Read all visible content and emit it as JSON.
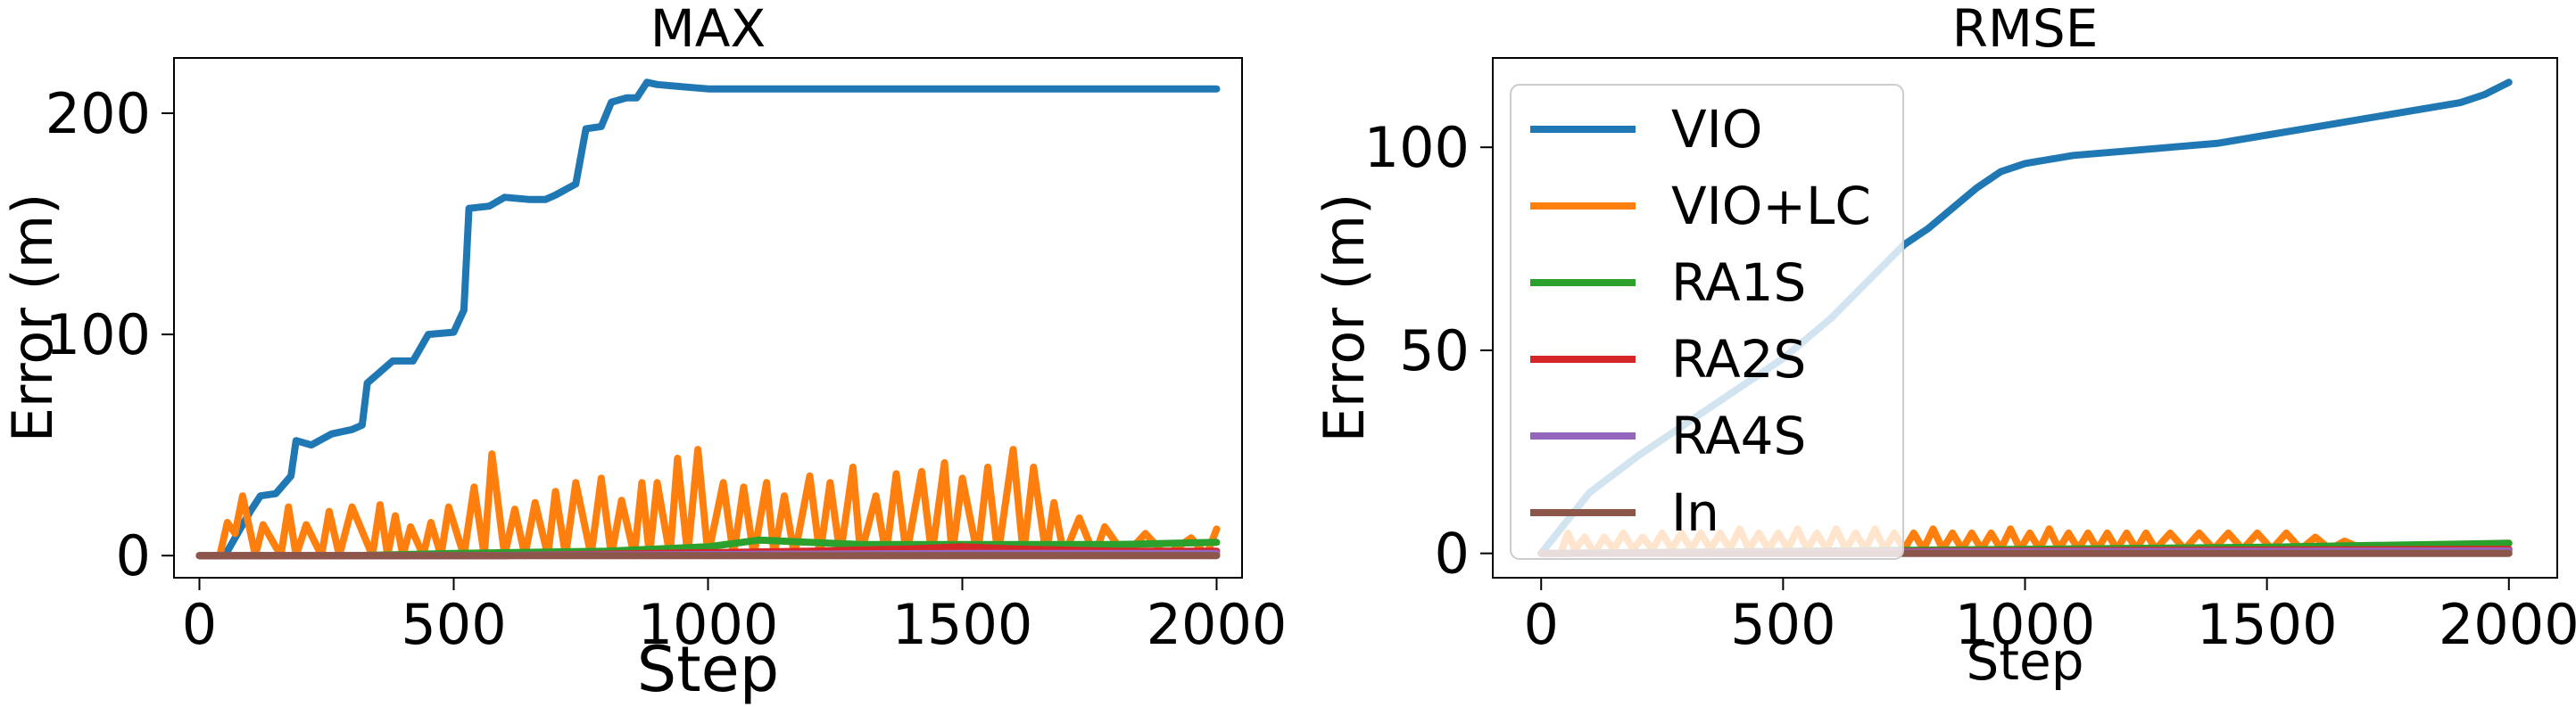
{
  "chart_data": [
    {
      "type": "line",
      "title": "MAX",
      "xlabel": "Step",
      "ylabel": "Error (m)",
      "xlim": [
        -50,
        2050
      ],
      "ylim": [
        -10,
        225
      ],
      "xticks": [
        0,
        500,
        1000,
        1500,
        2000
      ],
      "yticks": [
        0,
        100,
        200
      ],
      "legend": "none",
      "grid": false,
      "series": [
        {
          "name": "VIO",
          "color": "#1f77b4",
          "x": [
            0,
            50,
            100,
            120,
            150,
            180,
            190,
            220,
            260,
            300,
            320,
            330,
            380,
            420,
            450,
            500,
            520,
            530,
            570,
            600,
            650,
            680,
            700,
            740,
            760,
            790,
            810,
            840,
            860,
            880,
            900,
            950,
            1000,
            1200,
            1500,
            2000
          ],
          "y": [
            0,
            0,
            20,
            27,
            28,
            36,
            52,
            50,
            55,
            57,
            59,
            78,
            88,
            88,
            100,
            101,
            111,
            157,
            158,
            162,
            161,
            161,
            163,
            168,
            193,
            194,
            205,
            207,
            207,
            214,
            213,
            212,
            211,
            211,
            211,
            211
          ]
        },
        {
          "name": "VIO+LC",
          "color": "#ff7f0e",
          "x": [
            0,
            40,
            55,
            70,
            85,
            110,
            125,
            160,
            175,
            190,
            210,
            240,
            255,
            275,
            300,
            340,
            355,
            370,
            385,
            400,
            415,
            440,
            455,
            475,
            490,
            520,
            540,
            560,
            575,
            600,
            620,
            640,
            660,
            685,
            700,
            720,
            740,
            770,
            790,
            810,
            830,
            855,
            870,
            885,
            900,
            925,
            940,
            960,
            980,
            1000,
            1030,
            1050,
            1070,
            1090,
            1115,
            1130,
            1150,
            1170,
            1200,
            1220,
            1240,
            1260,
            1285,
            1300,
            1330,
            1350,
            1370,
            1390,
            1420,
            1440,
            1465,
            1480,
            1500,
            1530,
            1550,
            1570,
            1600,
            1620,
            1640,
            1665,
            1680,
            1700,
            1730,
            1760,
            1780,
            1820,
            1860,
            1900,
            1950,
            1980,
            2000
          ],
          "y": [
            0,
            0,
            15,
            10,
            27,
            0,
            14,
            0,
            22,
            0,
            14,
            0,
            20,
            0,
            22,
            0,
            23,
            0,
            18,
            0,
            13,
            0,
            15,
            0,
            22,
            0,
            31,
            0,
            46,
            0,
            21,
            0,
            24,
            0,
            29,
            0,
            33,
            0,
            35,
            0,
            25,
            0,
            33,
            0,
            33,
            0,
            44,
            0,
            48,
            0,
            33,
            0,
            31,
            0,
            33,
            0,
            27,
            0,
            36,
            0,
            33,
            0,
            40,
            0,
            27,
            0,
            37,
            0,
            38,
            0,
            42,
            0,
            35,
            0,
            40,
            0,
            48,
            0,
            40,
            0,
            24,
            0,
            17,
            0,
            13,
            0,
            10,
            0,
            8,
            0,
            12
          ]
        },
        {
          "name": "RA1S",
          "color": "#2ca02c",
          "x": [
            0,
            300,
            500,
            800,
            1000,
            1100,
            1300,
            1500,
            1800,
            2000
          ],
          "y": [
            0,
            0,
            1,
            2,
            4,
            7,
            5,
            5,
            5,
            6
          ]
        },
        {
          "name": "RA2S",
          "color": "#d62728",
          "x": [
            0,
            300,
            600,
            900,
            1200,
            1400,
            1500,
            1600,
            1800,
            2000
          ],
          "y": [
            0,
            0,
            0,
            1,
            2,
            3,
            4,
            3,
            2,
            2
          ]
        },
        {
          "name": "RA4S",
          "color": "#9467bd",
          "x": [
            0,
            500,
            1000,
            1500,
            2000
          ],
          "y": [
            0,
            0,
            0.5,
            1,
            1
          ]
        },
        {
          "name": "In",
          "color": "#8c564b",
          "x": [
            0,
            500,
            1000,
            1500,
            2000
          ],
          "y": [
            0,
            0,
            0,
            0,
            0
          ]
        }
      ]
    },
    {
      "type": "line",
      "title": "RMSE",
      "xlabel": "Step",
      "ylabel": "Error (m)",
      "xlim": [
        -100,
        2100
      ],
      "ylim": [
        -6,
        122
      ],
      "xticks": [
        0,
        500,
        1000,
        1500,
        2000
      ],
      "yticks": [
        0,
        50,
        100
      ],
      "legend": "top-left",
      "grid": false,
      "series": [
        {
          "name": "VIO",
          "color": "#1f77b4",
          "x": [
            0,
            100,
            200,
            300,
            400,
            500,
            600,
            700,
            750,
            800,
            850,
            900,
            950,
            1000,
            1100,
            1200,
            1300,
            1400,
            1500,
            1600,
            1700,
            1800,
            1900,
            1950,
            2000
          ],
          "y": [
            0,
            15,
            24,
            32,
            40,
            48,
            58,
            70,
            76,
            80,
            85,
            90,
            94,
            96,
            98,
            99,
            100,
            101,
            103,
            105,
            107,
            109,
            111,
            113,
            116
          ]
        },
        {
          "name": "VIO+LC",
          "color": "#ff7f0e",
          "x": [
            0,
            40,
            55,
            70,
            90,
            110,
            130,
            150,
            170,
            190,
            210,
            230,
            250,
            270,
            290,
            310,
            330,
            350,
            370,
            390,
            410,
            430,
            450,
            470,
            490,
            510,
            530,
            550,
            570,
            590,
            610,
            630,
            650,
            670,
            690,
            710,
            730,
            750,
            770,
            790,
            810,
            830,
            850,
            870,
            890,
            910,
            930,
            950,
            970,
            990,
            1010,
            1030,
            1050,
            1070,
            1090,
            1110,
            1130,
            1150,
            1170,
            1190,
            1210,
            1230,
            1250,
            1270,
            1300,
            1330,
            1360,
            1390,
            1420,
            1450,
            1480,
            1510,
            1540,
            1570,
            1600,
            1630,
            1660,
            1700,
            1750
          ],
          "y": [
            0,
            0,
            5,
            1,
            4,
            0,
            4,
            1,
            5,
            1,
            4,
            1,
            5,
            1,
            5,
            1,
            5,
            1,
            5,
            1,
            6,
            1,
            5,
            1,
            5,
            1,
            6,
            1,
            5,
            1,
            6,
            1,
            5,
            1,
            6,
            1,
            5,
            1,
            5,
            1,
            6,
            1,
            5,
            1,
            5,
            1,
            5,
            1,
            6,
            1,
            5,
            1,
            6,
            1,
            5,
            1,
            5,
            1,
            5,
            1,
            5,
            1,
            5,
            1,
            5,
            1,
            5,
            1,
            5,
            1,
            5,
            1,
            5,
            1,
            4,
            1,
            3,
            1,
            2
          ]
        },
        {
          "name": "RA1S",
          "color": "#2ca02c",
          "x": [
            0,
            500,
            1000,
            1500,
            2000
          ],
          "y": [
            0,
            0.5,
            1,
            1.5,
            2.5
          ]
        },
        {
          "name": "RA2S",
          "color": "#d62728",
          "x": [
            0,
            500,
            1000,
            1500,
            2000
          ],
          "y": [
            0,
            0.3,
            0.6,
            0.8,
            1
          ]
        },
        {
          "name": "RA4S",
          "color": "#9467bd",
          "x": [
            0,
            500,
            1000,
            1500,
            2000
          ],
          "y": [
            0,
            0.2,
            0.4,
            0.5,
            0.6
          ]
        },
        {
          "name": "In",
          "color": "#8c564b",
          "x": [
            0,
            500,
            1000,
            1500,
            2000
          ],
          "y": [
            0,
            0,
            0,
            0,
            0
          ]
        }
      ]
    }
  ]
}
